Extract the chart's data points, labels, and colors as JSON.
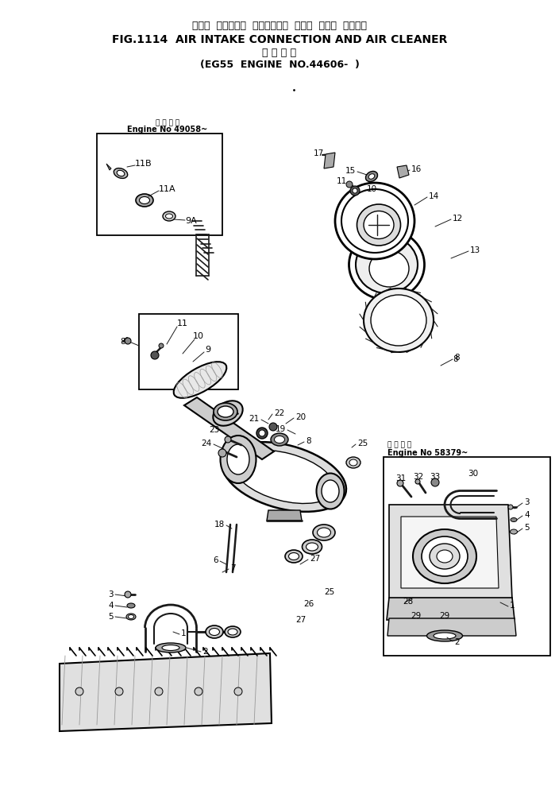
{
  "title_japanese": "エアー  インテーク  コネクション  および  エアー  クリーナ",
  "title_english": "FIG.1114  AIR INTAKE CONNECTION AND AIR CLEANER",
  "subtitle_japanese": "適 用 号 機",
  "subtitle_english": "(EG55  ENGINE  NO.44606-  )",
  "bg_color": "#ffffff",
  "line_color": "#1a1a1a",
  "inset1_label": "Engine No 49058~",
  "inset1_japanese": "適 用 号 機",
  "inset2_label": "Engine No 58379~",
  "inset2_japanese": "適 用 号 機"
}
